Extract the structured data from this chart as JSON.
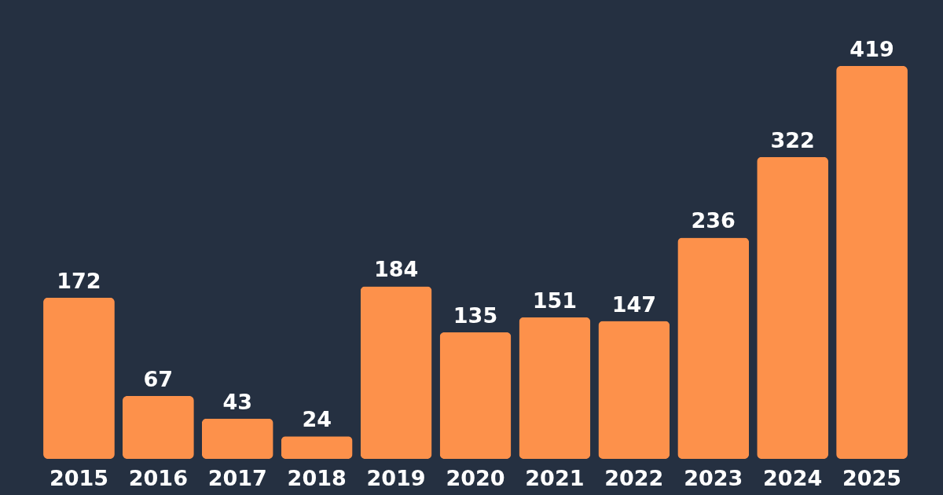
{
  "chart_data": {
    "type": "bar",
    "categories": [
      "2015",
      "2016",
      "2017",
      "2018",
      "2019",
      "2020",
      "2021",
      "2022",
      "2023",
      "2024",
      "2025"
    ],
    "values": [
      172,
      67,
      43,
      24,
      184,
      135,
      151,
      147,
      236,
      322,
      419
    ],
    "color": "#fd914b",
    "data_labels": true,
    "grid": false
  }
}
